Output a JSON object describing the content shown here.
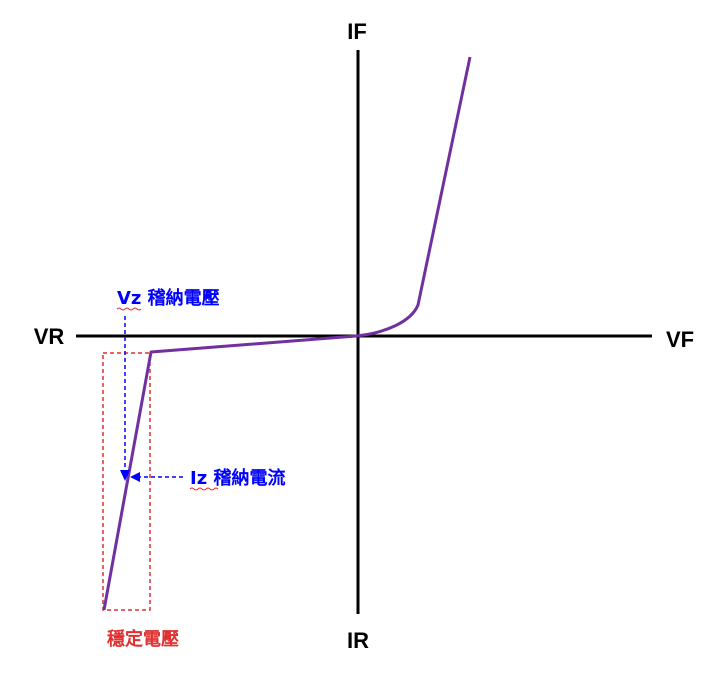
{
  "axes": {
    "y_positive_label": "IF",
    "y_negative_label": "IR",
    "x_negative_label": "VR",
    "x_positive_label": "VF"
  },
  "annotations": {
    "vz_label": "Vz 稽納電壓",
    "iz_label": "Iz 稽納電流",
    "stable_voltage_label": "穩定電壓"
  },
  "colors": {
    "axis": "#000000",
    "curve": "#7030a0",
    "annotation_blue": "#0000ff",
    "stable_region_red": "#e03030"
  }
}
